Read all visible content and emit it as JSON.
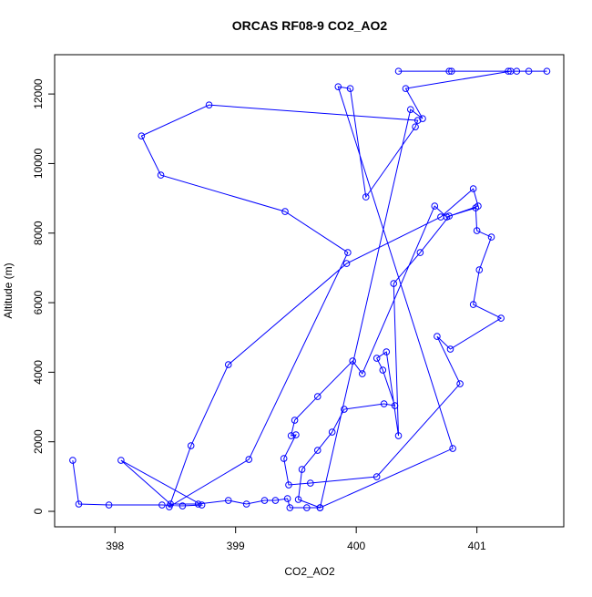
{
  "chart_data": {
    "type": "scatter",
    "mode": "lines+markers",
    "title": "ORCAS RF08-9 CO2_AO2",
    "x_label": "CO2_AO2",
    "y_label": "Altitude (m)",
    "series": [
      {
        "color": "#0000ff",
        "x": [
          397.65,
          397.7,
          397.95,
          398.39,
          398.56,
          398.72,
          398.05,
          398.46,
          398.69,
          398.94,
          399.09,
          399.24,
          399.33,
          399.43,
          399.45,
          399.59,
          399.7,
          399.52,
          399.55,
          399.68,
          399.8,
          399.9,
          400.23,
          400.32,
          400.22,
          400.17,
          400.25,
          400.35,
          400.31,
          400.53,
          400.77,
          400.99,
          401.0,
          401.12,
          401.02,
          400.97,
          401.2,
          400.78,
          400.67,
          400.86,
          400.17,
          399.62,
          399.44,
          399.4,
          399.5,
          399.46,
          399.49,
          399.68,
          399.97,
          400.05,
          400.65,
          400.75,
          401.01,
          400.97,
          400.7,
          399.92,
          398.94,
          398.63,
          398.45,
          399.11,
          399.93,
          399.41,
          398.38,
          398.22,
          398.78,
          400.51,
          400.49,
          400.08,
          399.95,
          399.85,
          400.8,
          399.7,
          400.45,
          400.55,
          400.41,
          401.28,
          401.58,
          401.43,
          401.33,
          400.79,
          400.35,
          400.77,
          401.26
        ],
        "values": [
          1467,
          210,
          183,
          183,
          157,
          183,
          1467,
          210,
          210,
          314,
          210,
          314,
          314,
          367,
          105,
          105,
          105,
          341,
          1205,
          1755,
          2279,
          2934,
          3092,
          3039,
          4061,
          4402,
          4585,
          2175,
          6550,
          7441,
          8489,
          8725,
          8070,
          7886,
          6943,
          5947,
          5554,
          4664,
          5030,
          3668,
          996,
          812,
          760,
          1520,
          2201,
          2175,
          2620,
          3301,
          4323,
          3956,
          8777,
          8463,
          8777,
          9275,
          8463,
          7126,
          4218,
          1886,
          131,
          1493,
          7441,
          8620,
          9668,
          10794,
          11685,
          11240,
          11056,
          9039,
          12157,
          12209,
          1808,
          105,
          11554,
          11292,
          12157,
          12655,
          12655,
          12655,
          12655,
          12655,
          12655,
          12655,
          12655
        ]
      }
    ],
    "xlim": [
      397.5,
      401.72
    ],
    "ylim": [
      -445,
      13130
    ],
    "xticks": [
      398,
      399,
      400,
      401
    ],
    "yticks": [
      0,
      2000,
      4000,
      6000,
      8000,
      10000,
      12000
    ]
  }
}
